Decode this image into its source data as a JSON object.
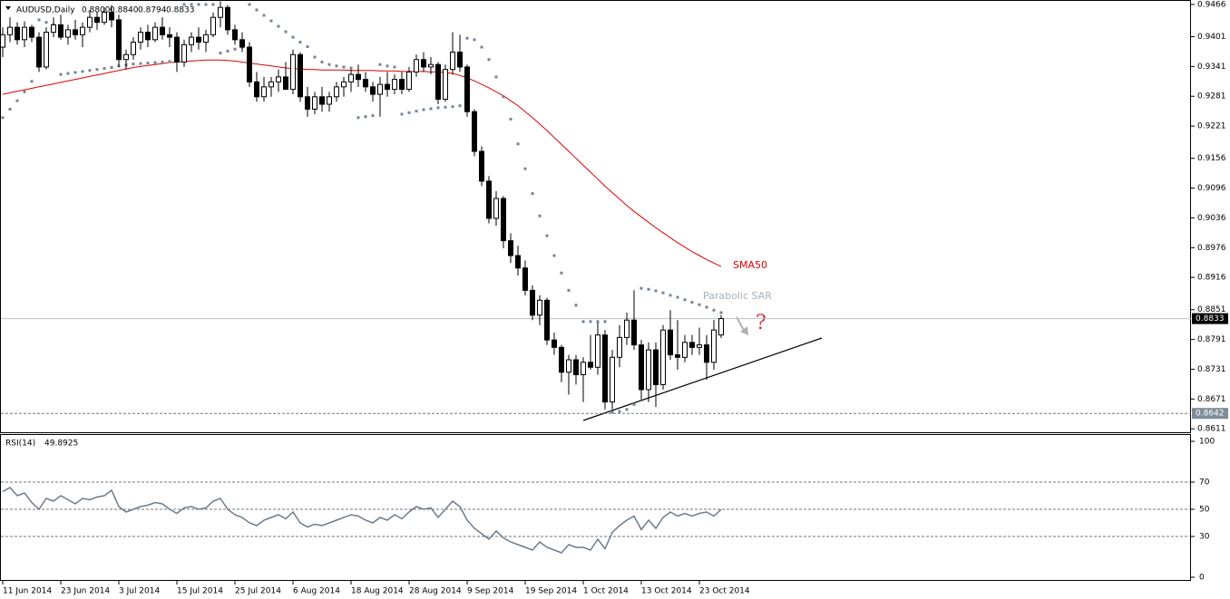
{
  "chart_data": [
    {
      "type": "candlestick",
      "title": "AUDUSD,Daily",
      "ohlc_text": [
        "0.8800",
        "0.8840",
        "0.8794",
        "0.8833"
      ],
      "categories": [
        "11 Jun 2014",
        null,
        null,
        null,
        null,
        null,
        null,
        null,
        "23 Jun 2014",
        null,
        null,
        null,
        null,
        null,
        null,
        null,
        "3 Jul 2014",
        null,
        null,
        null,
        null,
        null,
        null,
        null,
        "15 Jul 2014",
        null,
        null,
        null,
        null,
        null,
        null,
        null,
        "25 Jul 2014",
        null,
        null,
        null,
        null,
        null,
        null,
        null,
        "6 Aug 2014",
        null,
        null,
        null,
        null,
        null,
        null,
        null,
        "18 Aug 2014",
        null,
        null,
        null,
        null,
        null,
        null,
        null,
        "28 Aug 2014",
        null,
        null,
        null,
        null,
        null,
        null,
        null,
        "9 Sep 2014",
        null,
        null,
        null,
        null,
        null,
        null,
        null,
        "19 Sep 2014",
        null,
        null,
        null,
        null,
        null,
        null,
        null,
        "1 Oct 2014",
        null,
        null,
        null,
        null,
        null,
        null,
        null,
        "13 Oct 2014",
        null,
        null,
        null,
        null,
        null,
        null,
        null,
        "23 Oct 2014",
        null,
        null,
        null
      ],
      "open": [
        0.938,
        0.9405,
        0.942,
        0.9395,
        0.942,
        0.94,
        0.934,
        0.941,
        0.9425,
        0.94,
        0.9415,
        0.9405,
        0.942,
        0.944,
        0.943,
        0.945,
        0.9435,
        0.9355,
        0.9365,
        0.939,
        0.941,
        0.9395,
        0.942,
        0.9405,
        0.94,
        0.935,
        0.9385,
        0.94,
        0.939,
        0.9405,
        0.944,
        0.946,
        0.9415,
        0.9395,
        0.938,
        0.931,
        0.928,
        0.93,
        0.931,
        0.932,
        0.9295,
        0.9365,
        0.928,
        0.9255,
        0.928,
        0.9265,
        0.928,
        0.93,
        0.931,
        0.9325,
        0.9315,
        0.93,
        0.9285,
        0.9305,
        0.9295,
        0.9315,
        0.9295,
        0.933,
        0.9355,
        0.934,
        0.9345,
        0.9275,
        0.9335,
        0.937,
        0.934,
        0.925,
        0.917,
        0.911,
        0.9035,
        0.9075,
        0.899,
        0.896,
        0.8935,
        0.889,
        0.884,
        0.887,
        0.879,
        0.8775,
        0.8725,
        0.875,
        0.872,
        0.8745,
        0.8735,
        0.88,
        0.8665,
        0.8755,
        0.8795,
        0.883,
        0.878,
        0.869,
        0.877,
        0.87,
        0.881,
        0.876,
        0.8755,
        0.8785,
        0.8775,
        0.878,
        0.8745,
        0.88
      ],
      "high": [
        0.942,
        0.944,
        0.943,
        0.9432,
        0.9425,
        0.941,
        0.942,
        0.944,
        0.9445,
        0.9425,
        0.9435,
        0.943,
        0.9455,
        0.9452,
        0.946,
        0.9465,
        0.9445,
        0.9375,
        0.94,
        0.942,
        0.9425,
        0.943,
        0.944,
        0.942,
        0.941,
        0.9395,
        0.941,
        0.942,
        0.9415,
        0.945,
        0.9472,
        0.9465,
        0.9425,
        0.941,
        0.939,
        0.933,
        0.932,
        0.932,
        0.9335,
        0.935,
        0.9375,
        0.937,
        0.93,
        0.929,
        0.93,
        0.929,
        0.931,
        0.932,
        0.9335,
        0.9345,
        0.933,
        0.931,
        0.932,
        0.933,
        0.9325,
        0.933,
        0.934,
        0.9365,
        0.937,
        0.936,
        0.935,
        0.9345,
        0.941,
        0.9405,
        0.9345,
        0.9255,
        0.918,
        0.912,
        0.909,
        0.908,
        0.9005,
        0.898,
        0.895,
        0.89,
        0.888,
        0.8875,
        0.8805,
        0.878,
        0.876,
        0.876,
        0.8755,
        0.88,
        0.8825,
        0.881,
        0.877,
        0.882,
        0.8845,
        0.889,
        0.879,
        0.8785,
        0.8785,
        0.882,
        0.885,
        0.883,
        0.88,
        0.88,
        0.8815,
        0.88,
        0.883,
        0.884
      ],
      "low": [
        0.936,
        0.939,
        0.9385,
        0.938,
        0.939,
        0.933,
        0.9335,
        0.94,
        0.9395,
        0.9385,
        0.9395,
        0.938,
        0.941,
        0.9415,
        0.9425,
        0.942,
        0.934,
        0.9335,
        0.9355,
        0.9375,
        0.938,
        0.939,
        0.9395,
        0.938,
        0.933,
        0.934,
        0.937,
        0.9375,
        0.937,
        0.94,
        0.942,
        0.9405,
        0.9385,
        0.937,
        0.93,
        0.927,
        0.927,
        0.928,
        0.929,
        0.93,
        0.9285,
        0.927,
        0.924,
        0.9245,
        0.925,
        0.925,
        0.927,
        0.928,
        0.929,
        0.93,
        0.929,
        0.927,
        0.924,
        0.928,
        0.9285,
        0.9285,
        0.929,
        0.932,
        0.933,
        0.9325,
        0.9265,
        0.927,
        0.9325,
        0.933,
        0.924,
        0.916,
        0.91,
        0.9025,
        0.902,
        0.8975,
        0.8945,
        0.892,
        0.888,
        0.883,
        0.882,
        0.878,
        0.876,
        0.8705,
        0.868,
        0.87,
        0.8665,
        0.873,
        0.872,
        0.865,
        0.865,
        0.8735,
        0.878,
        0.877,
        0.867,
        0.8665,
        0.8655,
        0.869,
        0.875,
        0.873,
        0.8745,
        0.876,
        0.876,
        0.871,
        0.873,
        0.8794
      ],
      "close": [
        0.9405,
        0.942,
        0.9395,
        0.942,
        0.94,
        0.934,
        0.941,
        0.9425,
        0.94,
        0.9415,
        0.9405,
        0.942,
        0.944,
        0.943,
        0.945,
        0.9435,
        0.9355,
        0.9365,
        0.939,
        0.941,
        0.9395,
        0.942,
        0.9405,
        0.94,
        0.935,
        0.9385,
        0.94,
        0.939,
        0.9405,
        0.944,
        0.946,
        0.9415,
        0.9395,
        0.938,
        0.931,
        0.928,
        0.93,
        0.931,
        0.932,
        0.9295,
        0.9365,
        0.928,
        0.9255,
        0.928,
        0.9265,
        0.928,
        0.93,
        0.931,
        0.9325,
        0.9315,
        0.93,
        0.9285,
        0.9305,
        0.9295,
        0.9315,
        0.9295,
        0.933,
        0.9355,
        0.934,
        0.9345,
        0.9275,
        0.9335,
        0.937,
        0.934,
        0.925,
        0.917,
        0.911,
        0.9035,
        0.9075,
        0.899,
        0.896,
        0.8935,
        0.889,
        0.884,
        0.887,
        0.879,
        0.8775,
        0.8725,
        0.875,
        0.872,
        0.8745,
        0.8735,
        0.88,
        0.8665,
        0.8755,
        0.8795,
        0.883,
        0.878,
        0.869,
        0.877,
        0.87,
        0.881,
        0.876,
        0.8755,
        0.8785,
        0.8775,
        0.878,
        0.8745,
        0.881,
        0.8833
      ],
      "overlays": [
        {
          "name": "SMA50",
          "color": "#e00000",
          "style": "line",
          "values": [
            0.9285,
            0.9288,
            0.9291,
            0.9294,
            0.9297,
            0.93,
            0.9303,
            0.9306,
            0.9309,
            0.9312,
            0.9315,
            0.9318,
            0.9321,
            0.9324,
            0.9327,
            0.933,
            0.9333,
            0.9336,
            0.9339,
            0.9341,
            0.9343,
            0.9345,
            0.9347,
            0.9349,
            0.935,
            0.9351,
            0.9352,
            0.9353,
            0.9354,
            0.9354,
            0.9354,
            0.9353,
            0.9352,
            0.935,
            0.9348,
            0.9346,
            0.9344,
            0.9342,
            0.934,
            0.9338,
            0.9337,
            0.9336,
            0.9335,
            0.9335,
            0.9334,
            0.9334,
            0.9334,
            0.9334,
            0.9333,
            0.9333,
            0.9333,
            0.9333,
            0.9332,
            0.9332,
            0.9332,
            0.9331,
            0.9331,
            0.9331,
            0.9331,
            0.933,
            0.933,
            0.9329,
            0.9327,
            0.9323,
            0.9318,
            0.9312,
            0.9305,
            0.9298,
            0.929,
            0.9282,
            0.9272,
            0.9262,
            0.925,
            0.9238,
            0.9225,
            0.9212,
            0.9198,
            0.9184,
            0.917,
            0.9156,
            0.9142,
            0.9128,
            0.9114,
            0.91,
            0.9087,
            0.9074,
            0.9061,
            0.9049,
            0.9038,
            0.9027,
            0.9016,
            0.9006,
            0.8996,
            0.8986,
            0.8977,
            0.8968,
            0.896,
            0.8952,
            0.8945,
            0.8938
          ]
        },
        {
          "name": "Parabolic SAR",
          "color": "#76849a",
          "style": "dots",
          "values": [
            0.9238,
            0.9255,
            0.9272,
            0.929,
            0.9311,
            0.9435,
            0.943,
            0.9425,
            0.9325,
            0.9327,
            0.9329,
            0.9331,
            0.9333,
            0.9335,
            0.9337,
            0.9339,
            0.9342,
            0.9344,
            0.9346,
            0.9347,
            0.9348,
            0.9349,
            0.935,
            0.9351,
            0.9352,
            0.9466,
            0.9466,
            0.9466,
            0.9466,
            0.9466,
            0.9368,
            0.9372,
            0.9376,
            0.938,
            0.9466,
            0.9455,
            0.9444,
            0.9433,
            0.9422,
            0.9411,
            0.94,
            0.939,
            0.9381,
            0.936,
            0.935,
            0.9345,
            0.9342,
            0.934,
            0.9338,
            0.9238,
            0.924,
            0.9242,
            0.9345,
            0.9342,
            0.934,
            0.9245,
            0.9248,
            0.9251,
            0.9254,
            0.9256,
            0.9258,
            0.9259,
            0.926,
            0.9262,
            0.9398,
            0.9395,
            0.938,
            0.9355,
            0.932,
            0.928,
            0.9235,
            0.9185,
            0.9135,
            0.9085,
            0.904,
            0.9,
            0.896,
            0.8925,
            0.889,
            0.886,
            0.8827,
            0.8827,
            0.8827,
            0.8827,
            0.8644,
            0.8646,
            0.865,
            0.866,
            0.8894,
            0.8892,
            0.8889,
            0.8885,
            0.888,
            0.8876,
            0.8871,
            0.8866,
            0.8861,
            0.8856,
            0.885,
            0.8845
          ]
        }
      ],
      "annotation": "?",
      "current_price": 0.8833,
      "current_price_label": "0.8833",
      "support_level": 0.8642,
      "support_label": "0.8642",
      "ylim": [
        0.8604,
        0.9475
      ],
      "yticks": [
        0.9466,
        0.9401,
        0.9341,
        0.9281,
        0.9221,
        0.9156,
        0.9096,
        0.9036,
        0.8976,
        0.8916,
        0.8851,
        0.8791,
        0.8731,
        0.8671,
        0.8611
      ]
    },
    {
      "type": "line",
      "title": "RSI(14)",
      "color": "#6e7b8b",
      "values": [
        63,
        66,
        60,
        62,
        55,
        50,
        58,
        56,
        60,
        57,
        54,
        58,
        57,
        59,
        60,
        64,
        52,
        48,
        50,
        52,
        53,
        55,
        54,
        50,
        47,
        51,
        52,
        50,
        51,
        56,
        58,
        50,
        46,
        44,
        40,
        38,
        42,
        44,
        46,
        43,
        48,
        40,
        37,
        39,
        38,
        40,
        42,
        44,
        46,
        45,
        42,
        40,
        44,
        42,
        46,
        43,
        48,
        52,
        50,
        51,
        44,
        50,
        56,
        52,
        42,
        36,
        32,
        28,
        34,
        29,
        26,
        24,
        22,
        20,
        26,
        22,
        20,
        18,
        24,
        22,
        22,
        20,
        28,
        21,
        33,
        38,
        42,
        45,
        35,
        42,
        36,
        44,
        48,
        45,
        47,
        45,
        47,
        48,
        45,
        49.8925
      ],
      "levels": [
        70,
        50,
        30
      ],
      "ylim": [
        0,
        100
      ],
      "yticks": [
        100,
        70,
        50,
        30,
        0
      ]
    }
  ]
}
